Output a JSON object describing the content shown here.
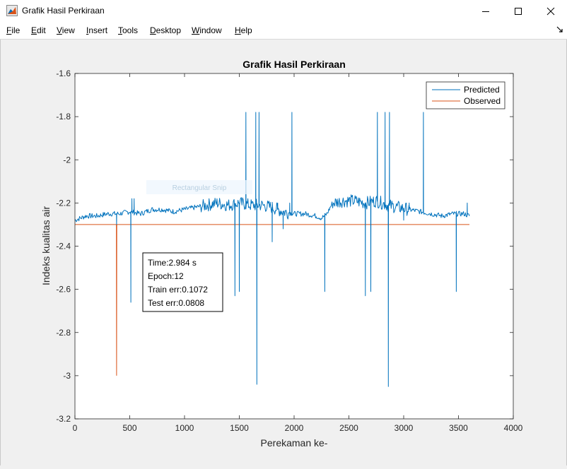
{
  "window": {
    "title": "Grafik Hasil Perkiraan",
    "icon": "matlab-figure-icon"
  },
  "menu": [
    {
      "key": "F",
      "rest": "ile"
    },
    {
      "key": "E",
      "rest": "dit"
    },
    {
      "key": "V",
      "rest": "iew"
    },
    {
      "key": "I",
      "rest": "nsert"
    },
    {
      "key": "T",
      "rest": "ools"
    },
    {
      "key": "D",
      "rest": "esktop"
    },
    {
      "key": "W",
      "rest": "indow"
    },
    {
      "key": "H",
      "rest": "elp"
    }
  ],
  "overlay_text": "Rectangular Snip",
  "annotation": [
    "Time:2.984 s",
    "Epoch:12",
    "Train err:0.1072",
    "Test err:0.0808"
  ],
  "colors": {
    "predicted": "#0072bd",
    "observed": "#d95319"
  },
  "chart_data": {
    "type": "line",
    "title": "Grafik Hasil Perkiraan",
    "xlabel": "Perekaman ke-",
    "ylabel": "Indeks kualitas air",
    "xlim": [
      0,
      4000
    ],
    "ylim": [
      -3.2,
      -1.6
    ],
    "xticks": [
      0,
      500,
      1000,
      1500,
      2000,
      2500,
      3000,
      3500,
      4000
    ],
    "yticks": [
      -1.6,
      -1.8,
      -2,
      -2.2,
      -2.4,
      -2.6,
      -2.8,
      -3,
      -3.2
    ],
    "grid": false,
    "legend_position": "top-right",
    "series": [
      {
        "name": "Predicted",
        "baseline": [
          [
            0,
            -2.28
          ],
          [
            50,
            -2.27
          ],
          [
            100,
            -2.26
          ],
          [
            200,
            -2.26
          ],
          [
            300,
            -2.25
          ],
          [
            400,
            -2.25
          ],
          [
            500,
            -2.24
          ],
          [
            600,
            -2.25
          ],
          [
            700,
            -2.23
          ],
          [
            800,
            -2.23
          ],
          [
            900,
            -2.24
          ],
          [
            1000,
            -2.23
          ],
          [
            1100,
            -2.22
          ],
          [
            1200,
            -2.21
          ],
          [
            1300,
            -2.2
          ],
          [
            1400,
            -2.21
          ],
          [
            1500,
            -2.2
          ],
          [
            1600,
            -2.21
          ],
          [
            1700,
            -2.21
          ],
          [
            1800,
            -2.22
          ],
          [
            1900,
            -2.24
          ],
          [
            2000,
            -2.25
          ],
          [
            2100,
            -2.25
          ],
          [
            2200,
            -2.26
          ],
          [
            2250,
            -2.27
          ],
          [
            2300,
            -2.25
          ],
          [
            2350,
            -2.2
          ],
          [
            2450,
            -2.19
          ],
          [
            2550,
            -2.19
          ],
          [
            2650,
            -2.2
          ],
          [
            2750,
            -2.19
          ],
          [
            2850,
            -2.21
          ],
          [
            2950,
            -2.22
          ],
          [
            3050,
            -2.23
          ],
          [
            3150,
            -2.24
          ],
          [
            3250,
            -2.25
          ],
          [
            3350,
            -2.26
          ],
          [
            3450,
            -2.25
          ],
          [
            3550,
            -2.25
          ],
          [
            3600,
            -2.26
          ]
        ],
        "spikes": [
          [
            380,
            -2.3
          ],
          [
            510,
            -2.66
          ],
          [
            520,
            -2.18
          ],
          [
            540,
            -2.18
          ],
          [
            1460,
            -2.63
          ],
          [
            1500,
            -2.61
          ],
          [
            1560,
            -1.78
          ],
          [
            1650,
            -1.78
          ],
          [
            1660,
            -3.04
          ],
          [
            1680,
            -1.78
          ],
          [
            1800,
            -2.38
          ],
          [
            1850,
            -2.2
          ],
          [
            1900,
            -2.32
          ],
          [
            1960,
            -2.2
          ],
          [
            1980,
            -1.78
          ],
          [
            2280,
            -2.61
          ],
          [
            2650,
            -2.63
          ],
          [
            2700,
            -2.61
          ],
          [
            2760,
            -1.78
          ],
          [
            2830,
            -1.78
          ],
          [
            2860,
            -3.05
          ],
          [
            2870,
            -1.78
          ],
          [
            3000,
            -2.28
          ],
          [
            3050,
            -2.2
          ],
          [
            3180,
            -1.78
          ],
          [
            3480,
            -2.61
          ],
          [
            3580,
            -2.2
          ]
        ]
      },
      {
        "name": "Observed",
        "values": [
          [
            0,
            -2.3
          ],
          [
            378,
            -2.3
          ],
          [
            380,
            -3.0
          ],
          [
            382,
            -2.3
          ],
          [
            3600,
            -2.3
          ]
        ]
      }
    ]
  }
}
